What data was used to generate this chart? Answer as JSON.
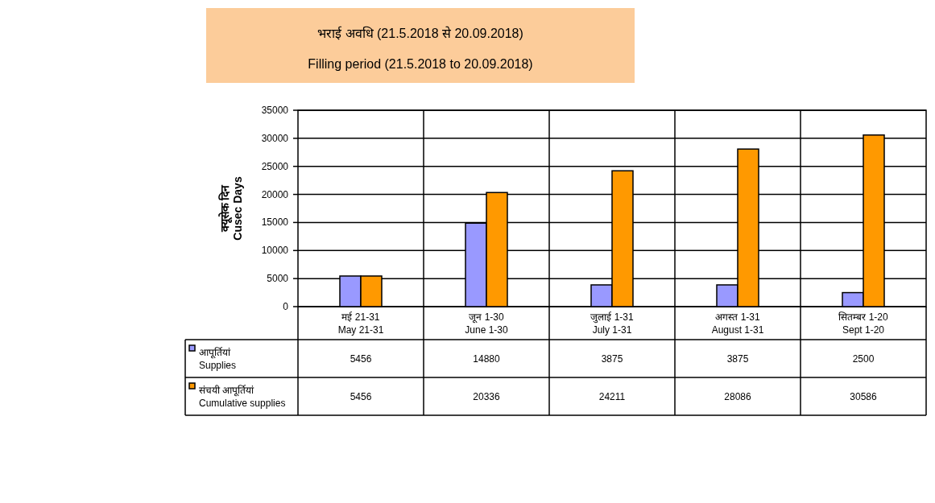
{
  "chart_data": {
    "type": "bar",
    "title": "भराई अवधि (21.5.2018 से 20.09.2018)",
    "subtitle": "Filling period (21.5.2018 to 20.09.2018)",
    "ylabel": "क्यूसेक दिन\nCusec Days",
    "categories": [
      "मई 21-31\nMay 21-31",
      "जून 1-30\nJune 1-30",
      "जुलाई 1-31\nJuly 1-31",
      "अगस्त 1-31\nAugust 1-31",
      "सितम्बर 1-20\nSept 1-20"
    ],
    "series": [
      {
        "name": "आपूर्तियां\nSupplies",
        "color": "#9999ff",
        "values": [
          5456,
          14880,
          3875,
          3875,
          2500
        ]
      },
      {
        "name": "संचयी आपूर्तियां\nCumulative supplies",
        "color": "#ff9900",
        "values": [
          5456,
          20336,
          24211,
          28086,
          30586
        ]
      }
    ],
    "ylim": [
      0,
      35000
    ],
    "yticks": [
      0,
      5000,
      10000,
      15000,
      20000,
      25000,
      30000,
      35000
    ],
    "grid": "y",
    "data_labels": true,
    "legend": "bottom"
  }
}
